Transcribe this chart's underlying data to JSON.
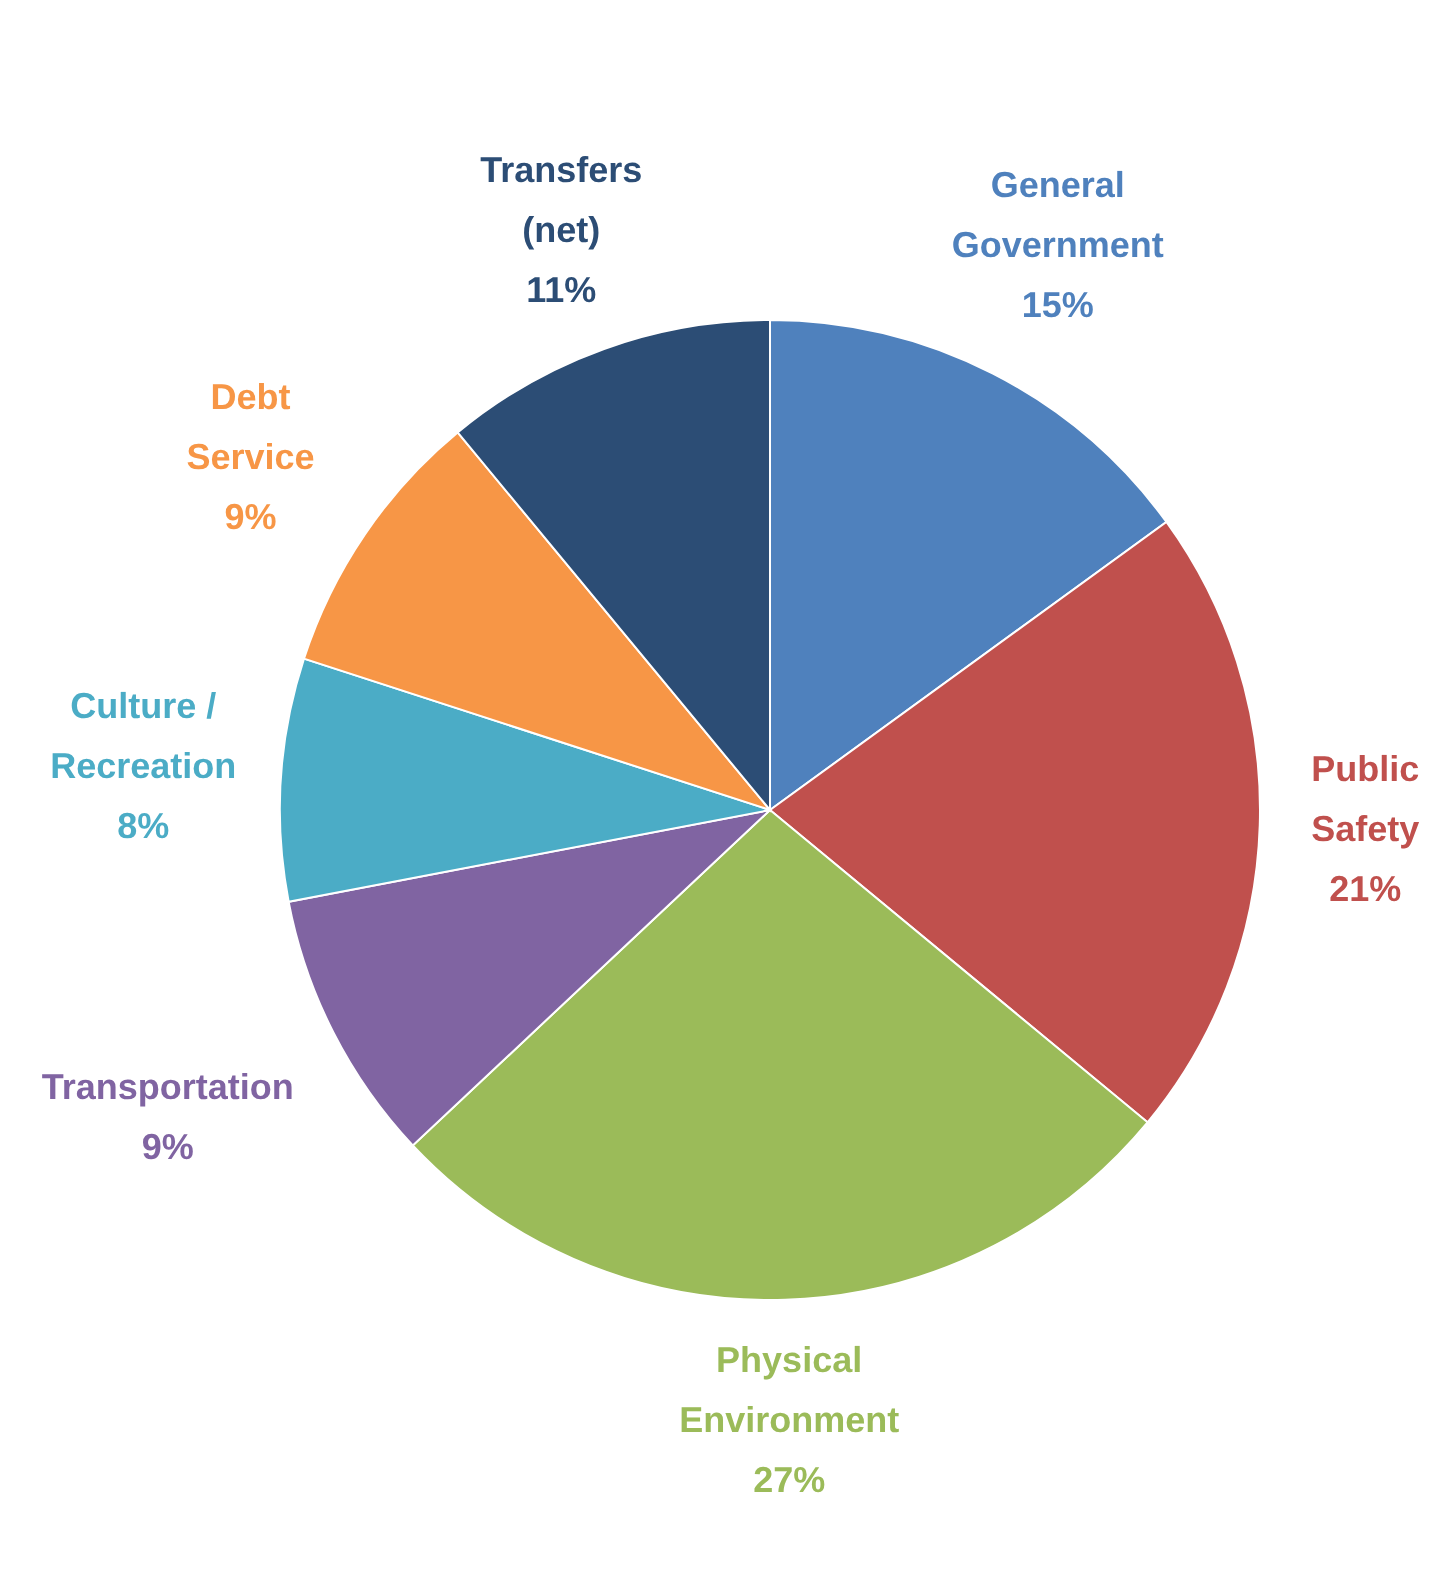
{
  "chart_data": {
    "type": "pie",
    "categories": [
      "General Government",
      "Public Safety",
      "Physical Environment",
      "Transportation",
      "Culture / Recreation",
      "Debt Service",
      "Transfers (net)"
    ],
    "values": [
      15,
      21,
      27,
      9,
      8,
      9,
      11
    ],
    "value_labels": [
      "15%",
      "21%",
      "27%",
      "9%",
      "8%",
      "9%",
      "11%"
    ],
    "colors": [
      "#4f81bd",
      "#c0504d",
      "#9bbb59",
      "#8064a2",
      "#4bacc6",
      "#f79646",
      "#2c4d75"
    ],
    "legend": false
  }
}
